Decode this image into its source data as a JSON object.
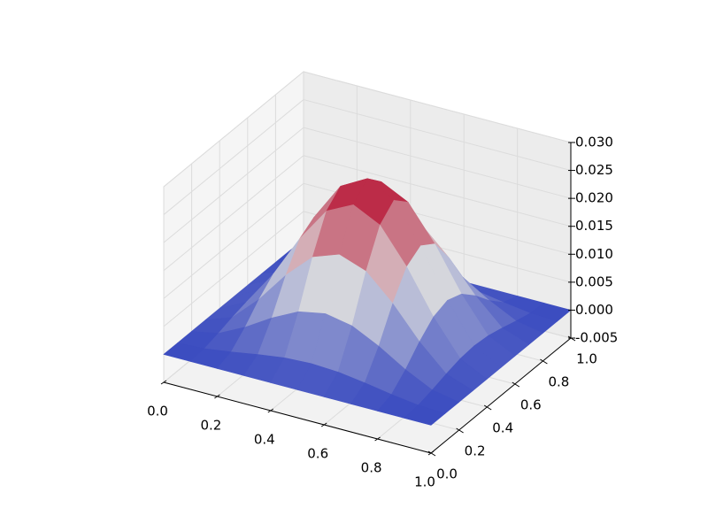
{
  "chart_data": {
    "type": "surface",
    "x": [
      0,
      0.1,
      0.2,
      0.3,
      0.4,
      0.5,
      0.6,
      0.7,
      0.8,
      0.9,
      1
    ],
    "y": [
      0,
      0.1,
      0.2,
      0.3,
      0.4,
      0.5,
      0.6,
      0.7,
      0.8,
      0.9,
      1
    ],
    "z": [
      [
        0,
        0,
        0,
        0,
        0,
        0,
        0,
        0,
        0,
        0,
        0
      ],
      [
        0,
        0.00025,
        0.00091,
        0.00172,
        0.00238,
        0.00263,
        0.00238,
        0.00172,
        0.00091,
        0.00025,
        0
      ],
      [
        0,
        0.00091,
        0.00328,
        0.00622,
        0.00859,
        0.0095,
        0.00859,
        0.00622,
        0.00328,
        0.00091,
        0
      ],
      [
        0,
        0.00172,
        0.00622,
        0.01178,
        0.01628,
        0.018,
        0.01628,
        0.01178,
        0.00622,
        0.00172,
        0
      ],
      [
        0,
        0.00238,
        0.00859,
        0.01628,
        0.0225,
        0.02487,
        0.0225,
        0.01628,
        0.00859,
        0.00238,
        0
      ],
      [
        0,
        0.00263,
        0.0095,
        0.018,
        0.02487,
        0.0275,
        0.02487,
        0.018,
        0.0095,
        0.00263,
        0
      ],
      [
        0,
        0.00238,
        0.00859,
        0.01628,
        0.0225,
        0.02487,
        0.0225,
        0.01628,
        0.00859,
        0.00238,
        0
      ],
      [
        0,
        0.00172,
        0.00622,
        0.01178,
        0.01628,
        0.018,
        0.01628,
        0.01178,
        0.00622,
        0.00172,
        0
      ],
      [
        0,
        0.00091,
        0.00328,
        0.00622,
        0.00859,
        0.0095,
        0.00859,
        0.00622,
        0.00328,
        0.00091,
        0
      ],
      [
        0,
        0.00025,
        0.00091,
        0.00172,
        0.00238,
        0.00263,
        0.00238,
        0.00172,
        0.00091,
        0.00025,
        0
      ],
      [
        0,
        0,
        0,
        0,
        0,
        0,
        0,
        0,
        0,
        0,
        0
      ]
    ],
    "colormap": [
      "#3b4cc0",
      "#dddddd",
      "#b40426"
    ],
    "xlim": [
      0,
      1
    ],
    "ylim": [
      0,
      1
    ],
    "zlim": [
      -0.005,
      0.03
    ],
    "xticks": [
      {
        "value": 0,
        "label": "0.0"
      },
      {
        "value": 0.2,
        "label": "0.2"
      },
      {
        "value": 0.4,
        "label": "0.4"
      },
      {
        "value": 0.6,
        "label": "0.6"
      },
      {
        "value": 0.8,
        "label": "0.8"
      },
      {
        "value": 1,
        "label": "1.0"
      }
    ],
    "yticks": [
      {
        "value": 0,
        "label": "0.0"
      },
      {
        "value": 0.2,
        "label": "0.2"
      },
      {
        "value": 0.4,
        "label": "0.4"
      },
      {
        "value": 0.6,
        "label": "0.6"
      },
      {
        "value": 0.8,
        "label": "0.8"
      },
      {
        "value": 1,
        "label": "1.0"
      }
    ],
    "zticks": [
      {
        "value": -0.005,
        "label": "-0.005"
      },
      {
        "value": 0,
        "label": "0.000"
      },
      {
        "value": 0.005,
        "label": "0.005"
      },
      {
        "value": 0.01,
        "label": "0.010"
      },
      {
        "value": 0.015,
        "label": "0.015"
      },
      {
        "value": 0.02,
        "label": "0.020"
      },
      {
        "value": 0.025,
        "label": "0.025"
      },
      {
        "value": 0.03,
        "label": "0.030"
      }
    ],
    "grid": true
  }
}
